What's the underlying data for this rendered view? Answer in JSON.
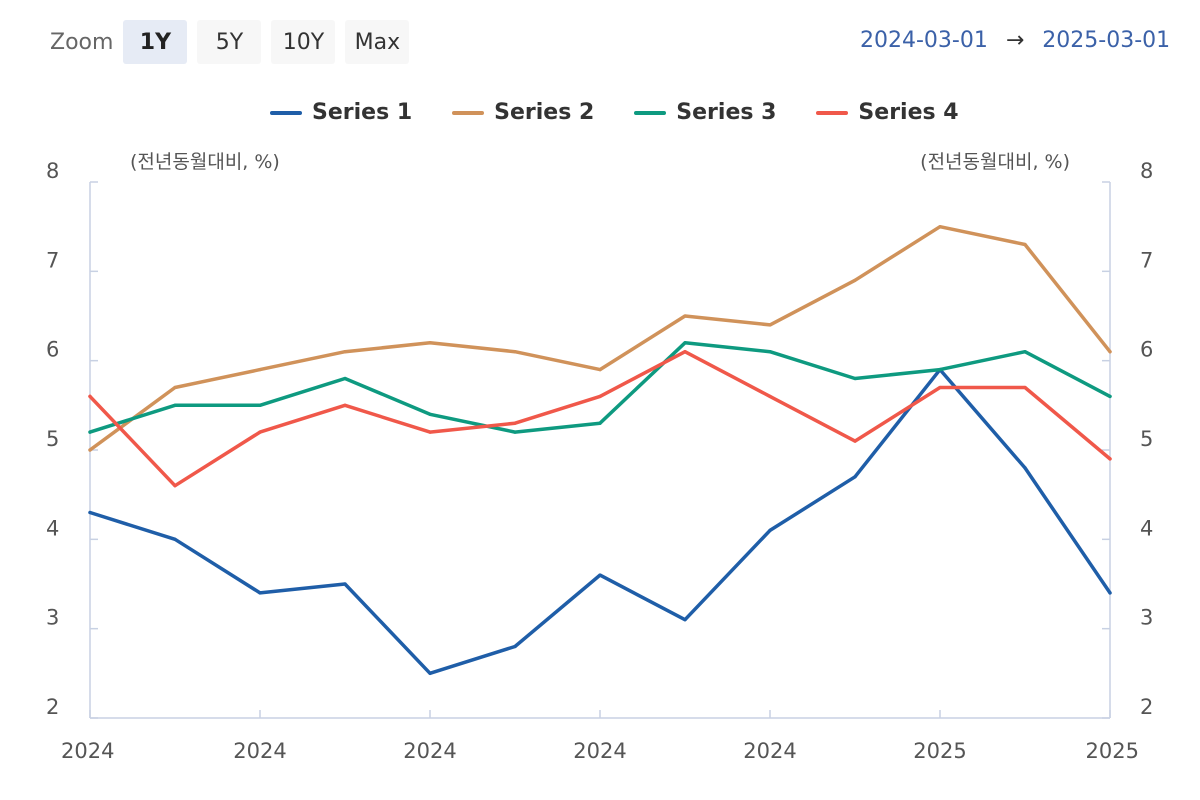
{
  "zoom": {
    "label": "Zoom",
    "buttons": [
      {
        "label": "1Y",
        "active": true
      },
      {
        "label": "5Y",
        "active": false
      },
      {
        "label": "10Y",
        "active": false
      },
      {
        "label": "Max",
        "active": false
      }
    ]
  },
  "range": {
    "from": "2024-03-01",
    "arrow": "→",
    "to": "2025-03-01"
  },
  "chart_data": {
    "type": "line",
    "left_axis_unit": "(전년동월대비, %)",
    "right_axis_unit": "(전년동월대비, %)",
    "ylim": [
      2,
      8
    ],
    "y_ticks": [
      "2",
      "3",
      "4",
      "5",
      "6",
      "7",
      "8"
    ],
    "x_tick_labels": [
      "2024",
      "2024",
      "2024",
      "2024",
      "2024",
      "2025",
      "2025"
    ],
    "grid": false,
    "legend_position": "top-center",
    "series": [
      {
        "name": "Series 1",
        "color": "#1f5ea8",
        "values": [
          4.3,
          4.0,
          3.4,
          3.5,
          2.5,
          2.8,
          3.6,
          3.1,
          4.1,
          4.7,
          5.9,
          4.8,
          3.4
        ]
      },
      {
        "name": "Series 2",
        "color": "#d0925a",
        "values": [
          5.0,
          5.7,
          5.9,
          6.1,
          6.2,
          6.1,
          5.9,
          6.5,
          6.4,
          6.9,
          7.5,
          7.3,
          6.1
        ]
      },
      {
        "name": "Series 3",
        "color": "#0e9a80",
        "values": [
          5.2,
          5.5,
          5.5,
          5.8,
          5.4,
          5.2,
          5.3,
          6.2,
          6.1,
          5.8,
          5.9,
          6.1,
          5.6
        ]
      },
      {
        "name": "Series 4",
        "color": "#f0584a",
        "values": [
          5.6,
          4.6,
          5.2,
          5.5,
          5.2,
          5.3,
          5.6,
          6.1,
          5.6,
          5.1,
          5.7,
          5.7,
          4.9
        ]
      }
    ]
  }
}
